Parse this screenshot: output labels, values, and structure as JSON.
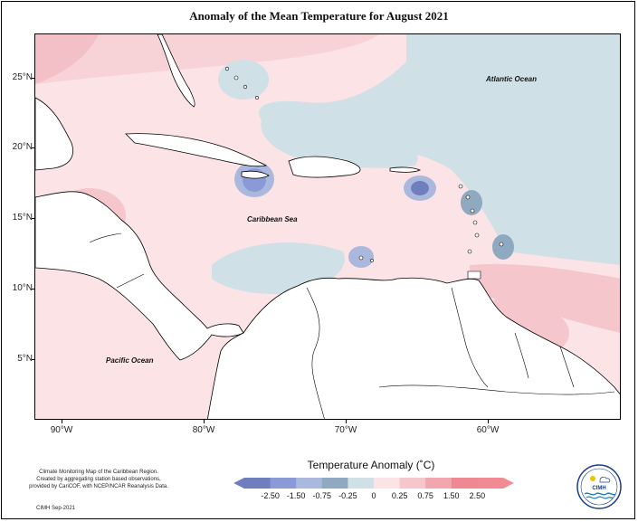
{
  "title": "Anomaly of the Mean Temperature for August 2021",
  "map": {
    "labels": {
      "atlantic": "Atlantic Ocean",
      "caribbean": "Caribbean Sea",
      "pacific": "Pacific Ocean"
    },
    "lat_ticks": [
      "25°N",
      "20°N",
      "15°N",
      "10°N",
      "5°N"
    ],
    "lon_ticks": [
      "90°W",
      "80°W",
      "70°W",
      "60°W"
    ]
  },
  "legend": {
    "title": "Temperature Anomaly (˚C)",
    "labels": [
      "-2.50",
      "-1.50",
      "-0.75",
      "-0.25",
      "0",
      "0.25",
      "0.75",
      "1.50",
      "2.50"
    ],
    "colors": [
      "#6f7fbd",
      "#8a9ad6",
      "#a9b8dc",
      "#8fa9c0",
      "#cfe0e6",
      "#fbe3e6",
      "#f6c6cd",
      "#f2a6ae",
      "#ef8891",
      "#f08a93"
    ]
  },
  "credit": {
    "line1": "Climate Monitoring Map of the Caribbean Region.",
    "line2": "Created by aggregating station based observations,",
    "line3": "provided by CariCOF, with NCEP/NCAR Reanalysis Data.",
    "date": "CIMH Sep-2021"
  },
  "logo": {
    "text": "CIMH"
  }
}
